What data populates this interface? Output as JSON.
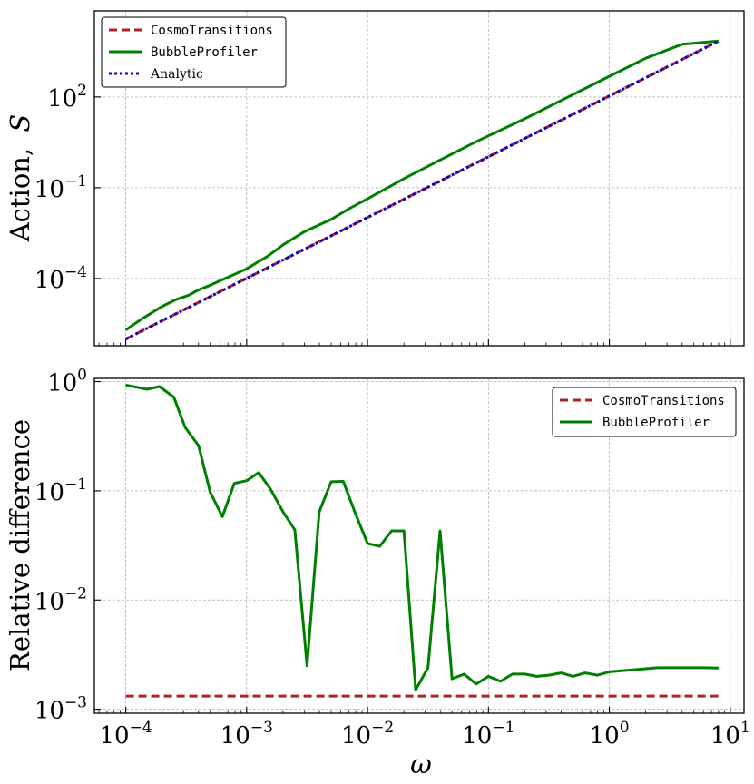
{
  "chart_data": [
    {
      "type": "line",
      "id": "top",
      "xscale": "log",
      "yscale": "log",
      "xlim": [
        5.5e-05,
        13
      ],
      "ylim": [
        6e-07,
        70000
      ],
      "grid": true,
      "ylabel_main": "Action,",
      "ylabel_symbol": "S",
      "xticks": [
        {
          "base": "10",
          "exp": "−4"
        },
        {
          "base": "10",
          "exp": "−3"
        },
        {
          "base": "10",
          "exp": "−2"
        },
        {
          "base": "10",
          "exp": "−1"
        },
        {
          "base": "10",
          "exp": "0"
        },
        {
          "base": "10",
          "exp": "1"
        }
      ],
      "yticks": [
        {
          "value": 0.0001,
          "base": "10",
          "exp": "−4"
        },
        {
          "value": 0.1,
          "base": "10",
          "exp": "−1"
        },
        {
          "value": 100,
          "base": "10",
          "exp": "2"
        }
      ],
      "legend_position": "upper-left",
      "series": [
        {
          "name": "CosmoTransitions",
          "color": "#b22222",
          "style": "dashed",
          "x": [
            0.0001,
            8
          ],
          "y": [
            1e-06,
            7000
          ]
        },
        {
          "name": "BubbleProfiler",
          "color": "#008000",
          "style": "solid",
          "x": [
            0.0001,
            0.00014,
            0.0002,
            0.00026,
            0.00033,
            0.0004,
            0.0005,
            0.0007,
            0.001,
            0.0015,
            0.002,
            0.003,
            0.005,
            0.007,
            0.01,
            0.02,
            0.04,
            0.08,
            0.2,
            0.5,
            1,
            2,
            4,
            8
          ],
          "y": [
            2e-06,
            5e-06,
            1.2e-05,
            2e-05,
            2.8e-05,
            4.2e-05,
            6e-05,
            0.00011,
            0.00021,
            0.00055,
            0.0013,
            0.0035,
            0.009,
            0.02,
            0.043,
            0.2,
            0.83,
            3.4,
            19,
            120,
            480,
            1900,
            5500,
            7000
          ]
        },
        {
          "name": "Analytic",
          "color": "#0000cd",
          "style": "dotted",
          "x": [
            0.0001,
            8
          ],
          "y": [
            1e-06,
            7000
          ]
        }
      ]
    },
    {
      "type": "line",
      "id": "bottom",
      "xscale": "log",
      "yscale": "log",
      "xlim": [
        5.5e-05,
        13
      ],
      "ylim": [
        0.00092,
        1.07
      ],
      "grid": true,
      "xlabel": "ω",
      "ylabel": "Relative difference",
      "xticks": [
        {
          "value": 0.0001,
          "base": "10",
          "exp": "−4"
        },
        {
          "value": 0.001,
          "base": "10",
          "exp": "−3"
        },
        {
          "value": 0.01,
          "base": "10",
          "exp": "−2"
        },
        {
          "value": 0.1,
          "base": "10",
          "exp": "−1"
        },
        {
          "value": 1,
          "base": "10",
          "exp": "0"
        },
        {
          "value": 10,
          "base": "10",
          "exp": "1"
        }
      ],
      "yticks": [
        {
          "value": 0.001,
          "base": "10",
          "exp": "−3"
        },
        {
          "value": 0.01,
          "base": "10",
          "exp": "−2"
        },
        {
          "value": 0.1,
          "base": "10",
          "exp": "−1"
        },
        {
          "value": 1,
          "base": "10",
          "exp": "0"
        }
      ],
      "legend_position": "upper-right",
      "series": [
        {
          "name": "CosmoTransitions",
          "color": "#b22222",
          "style": "dashed",
          "x": [
            0.0001,
            8
          ],
          "y": [
            0.00132,
            0.00132
          ]
        },
        {
          "name": "BubbleProfiler",
          "color": "#008000",
          "style": "solid",
          "x": [
            0.0001,
            0.00015,
            0.00019,
            0.00025,
            0.00031,
            0.0004,
            0.0005,
            0.00063,
            0.00079,
            0.001,
            0.00126,
            0.00158,
            0.002,
            0.0025,
            0.00316,
            0.00398,
            0.005,
            0.0063,
            0.0079,
            0.01,
            0.0126,
            0.0158,
            0.02,
            0.025,
            0.0316,
            0.0398,
            0.05,
            0.063,
            0.079,
            0.1,
            0.126,
            0.158,
            0.2,
            0.25,
            0.316,
            0.4,
            0.5,
            0.63,
            0.8,
            1,
            1.26,
            1.6,
            2,
            2.5,
            3.2,
            4,
            5,
            6.3,
            8
          ],
          "y": [
            0.93,
            0.85,
            0.9,
            0.72,
            0.38,
            0.26,
            0.097,
            0.058,
            0.117,
            0.124,
            0.147,
            0.103,
            0.064,
            0.044,
            0.0025,
            0.064,
            0.121,
            0.122,
            0.063,
            0.033,
            0.031,
            0.043,
            0.043,
            0.0015,
            0.0024,
            0.043,
            0.0019,
            0.0021,
            0.0017,
            0.002,
            0.0018,
            0.0021,
            0.0021,
            0.002,
            0.00205,
            0.00215,
            0.002,
            0.00215,
            0.00205,
            0.0022,
            0.00225,
            0.0023,
            0.00235,
            0.0024,
            0.0024,
            0.0024,
            0.0024,
            0.0024,
            0.00238
          ]
        }
      ]
    }
  ],
  "legend_top": [
    "CosmoTransitions",
    "BubbleProfiler",
    "Analytic"
  ],
  "legend_bottom": [
    "CosmoTransitions",
    "BubbleProfiler"
  ]
}
